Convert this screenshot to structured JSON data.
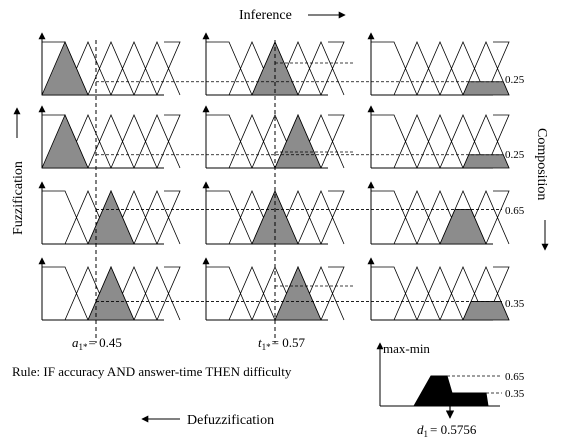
{
  "labels": {
    "inference": "Inference",
    "fuzzification": "Fuzzification",
    "composition": "Composition",
    "defuzzification": "Defuzzification",
    "rule": "Rule: IF accuracy AND answer-time THEN difficulty",
    "max_min": "max-min"
  },
  "inputs": {
    "a1": {
      "symbol": "a",
      "sub": "1*",
      "value": "= 0.45"
    },
    "t1": {
      "symbol": "t",
      "sub": "1*",
      "value": "= 0.57"
    }
  },
  "output": {
    "symbol": "d",
    "sub": "1",
    "value": "= 0.5756"
  },
  "clip_levels": [
    "0.25",
    "0.25",
    "0.65",
    "0.35"
  ],
  "aggregate_levels": [
    "0.65",
    "0.35"
  ]
}
